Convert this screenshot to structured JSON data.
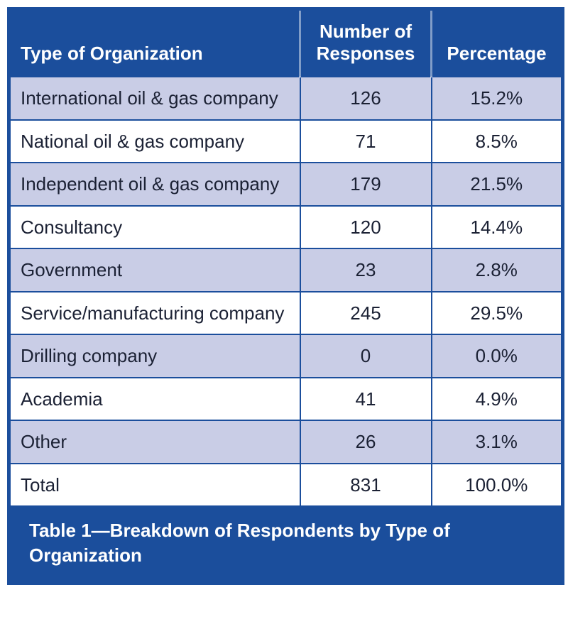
{
  "colors": {
    "header_bg": "#1b4e9c",
    "alt_row_bg": "#c9cde6",
    "body_text": "#1b2134",
    "header_text": "#ffffff"
  },
  "chart_data": {
    "type": "table",
    "title": "Table 1—Breakdown of Respondents by Type of Organization",
    "columns": [
      "Type of Organization",
      "Number of Responses",
      "Percentage"
    ],
    "rows": [
      [
        "International oil & gas company",
        "126",
        "15.2%"
      ],
      [
        "National oil & gas company",
        "71",
        "8.5%"
      ],
      [
        "Independent oil & gas company",
        "179",
        "21.5%"
      ],
      [
        "Consultancy",
        "120",
        "14.4%"
      ],
      [
        "Government",
        "23",
        "2.8%"
      ],
      [
        "Service/manufacturing company",
        "245",
        "29.5%"
      ],
      [
        "Drilling company",
        "0",
        "0.0%"
      ],
      [
        "Academia",
        "41",
        "4.9%"
      ],
      [
        "Other",
        "26",
        "3.1%"
      ],
      [
        "Total",
        "831",
        "100.0%"
      ]
    ]
  }
}
